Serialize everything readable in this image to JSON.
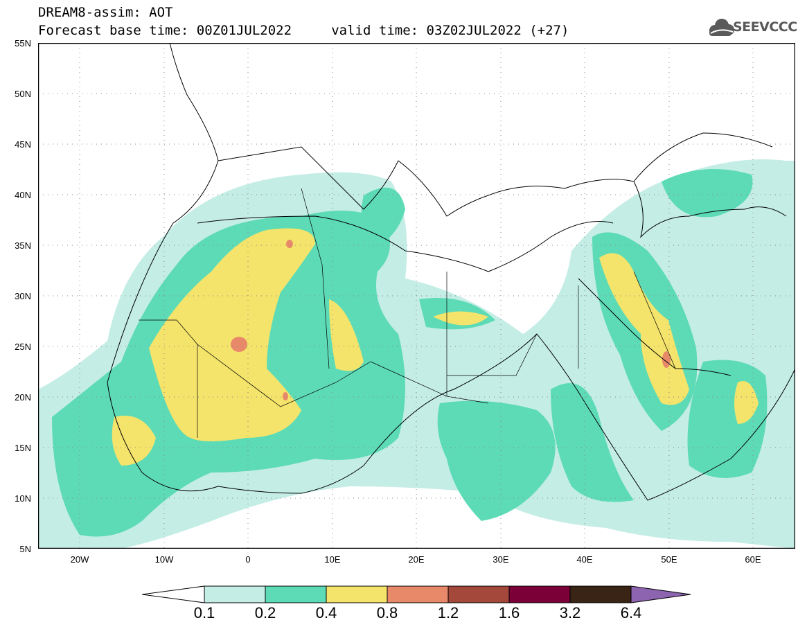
{
  "header": {
    "title": "DREAM8-assim: AOT",
    "subtitle": "Forecast base time: 00Z01JUL2022     valid time: 03Z02JUL2022 (+27)"
  },
  "logo": {
    "text": "SEEVCCC",
    "icon": "cloud-icon"
  },
  "map": {
    "lat_labels": [
      "55N",
      "50N",
      "45N",
      "40N",
      "35N",
      "30N",
      "25N",
      "20N",
      "15N",
      "10N",
      "5N"
    ],
    "lon_labels": [
      "20W",
      "10W",
      "0",
      "10E",
      "20E",
      "30E",
      "40E",
      "50E",
      "60E"
    ],
    "lat_range": [
      5,
      55
    ],
    "lon_range": [
      -25,
      65
    ],
    "grid": "dotted"
  },
  "colorbar": {
    "levels": [
      "0.1",
      "0.2",
      "0.4",
      "0.8",
      "1.2",
      "1.6",
      "3.2",
      "6.4"
    ],
    "colors": [
      "#ffffff",
      "#c4ede6",
      "#5ddbb6",
      "#f4e46b",
      "#e8896a",
      "#a4483c",
      "#7b0038",
      "#3a2416",
      "#8c64b0"
    ]
  },
  "colors": {
    "c1": "#c4ede6",
    "c2": "#5ddbb6",
    "c3": "#f4e46b",
    "c4": "#e8896a"
  }
}
